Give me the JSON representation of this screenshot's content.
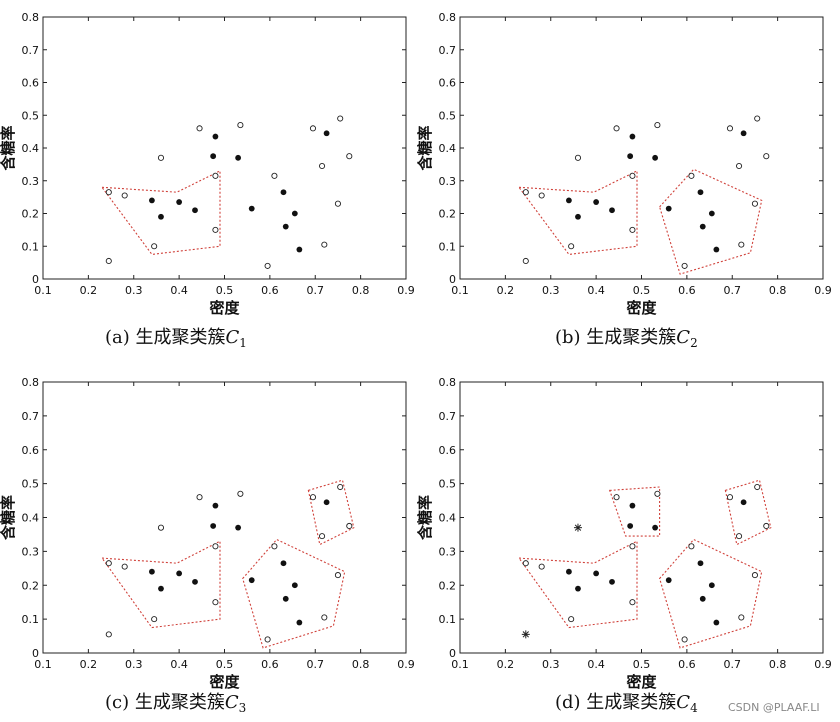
{
  "watermark": "CSDN @PLAAF.LI",
  "chart_data": [
    {
      "type": "scatter",
      "xlabel": "密度",
      "ylabel": "含糖率",
      "xlim": [
        0.1,
        0.9
      ],
      "ylim": [
        0,
        0.8
      ],
      "xticks": [
        "0.1",
        "0.2",
        "0.3",
        "0.4",
        "0.5",
        "0.6",
        "0.7",
        "0.8",
        "0.9"
      ],
      "yticks": [
        "0",
        "0.1",
        "0.2",
        "0.3",
        "0.4",
        "0.5",
        "0.6",
        "0.7",
        "0.8"
      ],
      "caption_prefix": "(a) 生成聚类簇",
      "caption_var": "C",
      "caption_sub": "1",
      "filled_points": [
        [
          0.34,
          0.24
        ],
        [
          0.36,
          0.19
        ],
        [
          0.4,
          0.235
        ],
        [
          0.435,
          0.21
        ],
        [
          0.475,
          0.375
        ],
        [
          0.48,
          0.435
        ],
        [
          0.53,
          0.37
        ],
        [
          0.56,
          0.215
        ],
        [
          0.63,
          0.265
        ],
        [
          0.635,
          0.16
        ],
        [
          0.655,
          0.2
        ],
        [
          0.665,
          0.09
        ],
        [
          0.725,
          0.445
        ]
      ],
      "open_points": [
        [
          0.245,
          0.055
        ],
        [
          0.245,
          0.265
        ],
        [
          0.28,
          0.255
        ],
        [
          0.345,
          0.1
        ],
        [
          0.36,
          0.37
        ],
        [
          0.445,
          0.46
        ],
        [
          0.48,
          0.15
        ],
        [
          0.48,
          0.315
        ],
        [
          0.535,
          0.47
        ],
        [
          0.595,
          0.04
        ],
        [
          0.61,
          0.315
        ],
        [
          0.695,
          0.46
        ],
        [
          0.715,
          0.345
        ],
        [
          0.72,
          0.105
        ],
        [
          0.75,
          0.23
        ],
        [
          0.755,
          0.49
        ],
        [
          0.775,
          0.375
        ]
      ],
      "star_points": [],
      "clusters": [
        [
          [
            0.23,
            0.28
          ],
          [
            0.395,
            0.265
          ],
          [
            0.49,
            0.33
          ],
          [
            0.49,
            0.1
          ],
          [
            0.34,
            0.075
          ]
        ]
      ]
    },
    {
      "type": "scatter",
      "xlabel": "密度",
      "ylabel": "含糖率",
      "xlim": [
        0.1,
        0.9
      ],
      "ylim": [
        0,
        0.8
      ],
      "xticks": [
        "0.1",
        "0.2",
        "0.3",
        "0.4",
        "0.5",
        "0.6",
        "0.7",
        "0.8",
        "0.9"
      ],
      "yticks": [
        "0",
        "0.1",
        "0.2",
        "0.3",
        "0.4",
        "0.5",
        "0.6",
        "0.7",
        "0.8"
      ],
      "caption_prefix": "(b) 生成聚类簇",
      "caption_var": "C",
      "caption_sub": "2",
      "filled_points": [
        [
          0.34,
          0.24
        ],
        [
          0.36,
          0.19
        ],
        [
          0.4,
          0.235
        ],
        [
          0.435,
          0.21
        ],
        [
          0.475,
          0.375
        ],
        [
          0.48,
          0.435
        ],
        [
          0.53,
          0.37
        ],
        [
          0.56,
          0.215
        ],
        [
          0.63,
          0.265
        ],
        [
          0.635,
          0.16
        ],
        [
          0.655,
          0.2
        ],
        [
          0.665,
          0.09
        ],
        [
          0.725,
          0.445
        ]
      ],
      "open_points": [
        [
          0.245,
          0.055
        ],
        [
          0.245,
          0.265
        ],
        [
          0.28,
          0.255
        ],
        [
          0.345,
          0.1
        ],
        [
          0.36,
          0.37
        ],
        [
          0.445,
          0.46
        ],
        [
          0.48,
          0.15
        ],
        [
          0.48,
          0.315
        ],
        [
          0.535,
          0.47
        ],
        [
          0.595,
          0.04
        ],
        [
          0.61,
          0.315
        ],
        [
          0.695,
          0.46
        ],
        [
          0.715,
          0.345
        ],
        [
          0.72,
          0.105
        ],
        [
          0.75,
          0.23
        ],
        [
          0.755,
          0.49
        ],
        [
          0.775,
          0.375
        ]
      ],
      "star_points": [],
      "clusters": [
        [
          [
            0.23,
            0.28
          ],
          [
            0.395,
            0.265
          ],
          [
            0.49,
            0.33
          ],
          [
            0.49,
            0.1
          ],
          [
            0.34,
            0.075
          ]
        ],
        [
          [
            0.54,
            0.22
          ],
          [
            0.615,
            0.335
          ],
          [
            0.765,
            0.24
          ],
          [
            0.74,
            0.08
          ],
          [
            0.585,
            0.015
          ]
        ]
      ]
    },
    {
      "type": "scatter",
      "xlabel": "密度",
      "ylabel": "含糖率",
      "xlim": [
        0.1,
        0.9
      ],
      "ylim": [
        0,
        0.8
      ],
      "xticks": [
        "0.1",
        "0.2",
        "0.3",
        "0.4",
        "0.5",
        "0.6",
        "0.7",
        "0.8",
        "0.9"
      ],
      "yticks": [
        "0",
        "0.1",
        "0.2",
        "0.3",
        "0.4",
        "0.5",
        "0.6",
        "0.7",
        "0.8"
      ],
      "caption_prefix": "(c) 生成聚类簇",
      "caption_var": "C",
      "caption_sub": "3",
      "filled_points": [
        [
          0.34,
          0.24
        ],
        [
          0.36,
          0.19
        ],
        [
          0.4,
          0.235
        ],
        [
          0.435,
          0.21
        ],
        [
          0.475,
          0.375
        ],
        [
          0.48,
          0.435
        ],
        [
          0.53,
          0.37
        ],
        [
          0.56,
          0.215
        ],
        [
          0.63,
          0.265
        ],
        [
          0.635,
          0.16
        ],
        [
          0.655,
          0.2
        ],
        [
          0.665,
          0.09
        ],
        [
          0.725,
          0.445
        ]
      ],
      "open_points": [
        [
          0.245,
          0.055
        ],
        [
          0.245,
          0.265
        ],
        [
          0.28,
          0.255
        ],
        [
          0.345,
          0.1
        ],
        [
          0.36,
          0.37
        ],
        [
          0.445,
          0.46
        ],
        [
          0.48,
          0.15
        ],
        [
          0.48,
          0.315
        ],
        [
          0.535,
          0.47
        ],
        [
          0.595,
          0.04
        ],
        [
          0.61,
          0.315
        ],
        [
          0.695,
          0.46
        ],
        [
          0.715,
          0.345
        ],
        [
          0.72,
          0.105
        ],
        [
          0.75,
          0.23
        ],
        [
          0.755,
          0.49
        ],
        [
          0.775,
          0.375
        ]
      ],
      "star_points": [],
      "clusters": [
        [
          [
            0.23,
            0.28
          ],
          [
            0.395,
            0.265
          ],
          [
            0.49,
            0.33
          ],
          [
            0.49,
            0.1
          ],
          [
            0.34,
            0.075
          ]
        ],
        [
          [
            0.54,
            0.22
          ],
          [
            0.615,
            0.335
          ],
          [
            0.765,
            0.24
          ],
          [
            0.74,
            0.08
          ],
          [
            0.585,
            0.015
          ]
        ],
        [
          [
            0.685,
            0.48
          ],
          [
            0.76,
            0.51
          ],
          [
            0.785,
            0.37
          ],
          [
            0.71,
            0.32
          ]
        ]
      ]
    },
    {
      "type": "scatter",
      "xlabel": "密度",
      "ylabel": "含糖率",
      "xlim": [
        0.1,
        0.9
      ],
      "ylim": [
        0,
        0.8
      ],
      "xticks": [
        "0.1",
        "0.2",
        "0.3",
        "0.4",
        "0.5",
        "0.6",
        "0.7",
        "0.8",
        "0.9"
      ],
      "yticks": [
        "0",
        "0.1",
        "0.2",
        "0.3",
        "0.4",
        "0.5",
        "0.6",
        "0.7",
        "0.8"
      ],
      "caption_prefix": "(d) 生成聚类簇",
      "caption_var": "C",
      "caption_sub": "4",
      "filled_points": [
        [
          0.34,
          0.24
        ],
        [
          0.36,
          0.19
        ],
        [
          0.4,
          0.235
        ],
        [
          0.435,
          0.21
        ],
        [
          0.475,
          0.375
        ],
        [
          0.48,
          0.435
        ],
        [
          0.53,
          0.37
        ],
        [
          0.56,
          0.215
        ],
        [
          0.63,
          0.265
        ],
        [
          0.635,
          0.16
        ],
        [
          0.655,
          0.2
        ],
        [
          0.665,
          0.09
        ],
        [
          0.725,
          0.445
        ]
      ],
      "open_points": [
        [
          0.245,
          0.265
        ],
        [
          0.28,
          0.255
        ],
        [
          0.345,
          0.1
        ],
        [
          0.445,
          0.46
        ],
        [
          0.48,
          0.15
        ],
        [
          0.48,
          0.315
        ],
        [
          0.535,
          0.47
        ],
        [
          0.595,
          0.04
        ],
        [
          0.61,
          0.315
        ],
        [
          0.695,
          0.46
        ],
        [
          0.715,
          0.345
        ],
        [
          0.72,
          0.105
        ],
        [
          0.75,
          0.23
        ],
        [
          0.755,
          0.49
        ],
        [
          0.775,
          0.375
        ]
      ],
      "star_points": [
        [
          0.36,
          0.37
        ],
        [
          0.245,
          0.055
        ]
      ],
      "clusters": [
        [
          [
            0.23,
            0.28
          ],
          [
            0.395,
            0.265
          ],
          [
            0.49,
            0.33
          ],
          [
            0.49,
            0.1
          ],
          [
            0.34,
            0.075
          ]
        ],
        [
          [
            0.54,
            0.22
          ],
          [
            0.615,
            0.335
          ],
          [
            0.765,
            0.24
          ],
          [
            0.74,
            0.08
          ],
          [
            0.585,
            0.015
          ]
        ],
        [
          [
            0.685,
            0.48
          ],
          [
            0.76,
            0.51
          ],
          [
            0.785,
            0.37
          ],
          [
            0.71,
            0.32
          ]
        ],
        [
          [
            0.43,
            0.48
          ],
          [
            0.54,
            0.49
          ],
          [
            0.54,
            0.345
          ],
          [
            0.465,
            0.345
          ]
        ]
      ]
    }
  ]
}
